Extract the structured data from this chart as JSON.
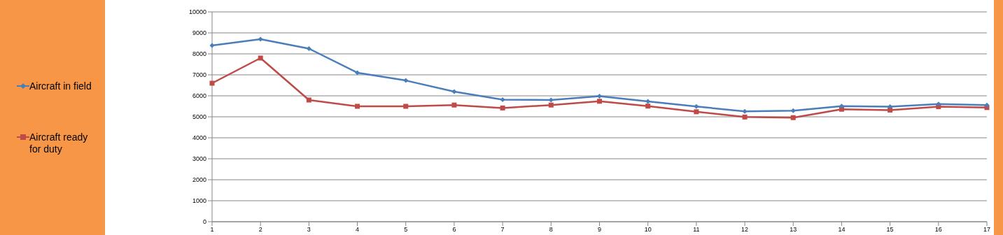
{
  "chart_data": {
    "type": "line",
    "categories": [
      "1",
      "2",
      "3",
      "4",
      "5",
      "6",
      "7",
      "8",
      "9",
      "10",
      "11",
      "12",
      "13",
      "14",
      "15",
      "16",
      "17"
    ],
    "series": [
      {
        "name": "Aircraft in field",
        "color": "#4a7ebb",
        "marker": "diamond",
        "values": [
          8400,
          8700,
          8250,
          7100,
          6730,
          6200,
          5820,
          5800,
          5980,
          5730,
          5490,
          5260,
          5290,
          5510,
          5480,
          5610,
          5560
        ]
      },
      {
        "name": "Aircraft ready for duty",
        "color": "#be4b48",
        "marker": "square",
        "values": [
          6600,
          7800,
          5800,
          5500,
          5500,
          5560,
          5420,
          5560,
          5740,
          5510,
          5240,
          4990,
          4960,
          5360,
          5320,
          5480,
          5440
        ]
      }
    ],
    "ylim": [
      0,
      10000
    ],
    "yticks": [
      0,
      1000,
      2000,
      3000,
      4000,
      5000,
      6000,
      7000,
      8000,
      9000,
      10000
    ],
    "grid": "y",
    "legend": "left"
  }
}
